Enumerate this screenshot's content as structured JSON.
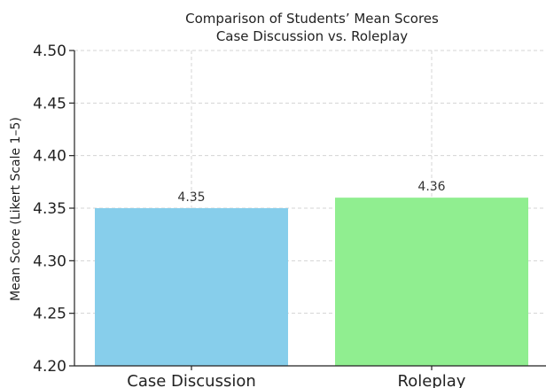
{
  "chart_data": {
    "type": "bar",
    "title": "Comparison of Students’ Mean Scores",
    "subtitle": "Case Discussion vs. Roleplay",
    "xlabel": "",
    "ylabel": "Mean Score (Likert Scale 1–5)",
    "categories": [
      "Case Discussion",
      "Roleplay"
    ],
    "values": [
      4.35,
      4.36
    ],
    "data_labels": [
      "4.35",
      "4.36"
    ],
    "colors": [
      "#87CEEB",
      "#90EE90"
    ],
    "ylim": [
      4.2,
      4.5
    ],
    "yticks": [
      4.2,
      4.25,
      4.3,
      4.35,
      4.4,
      4.45,
      4.5
    ],
    "ytick_labels": [
      "4.20",
      "4.25",
      "4.30",
      "4.35",
      "4.40",
      "4.45",
      "4.50"
    ],
    "grid": true,
    "legend": "none"
  }
}
